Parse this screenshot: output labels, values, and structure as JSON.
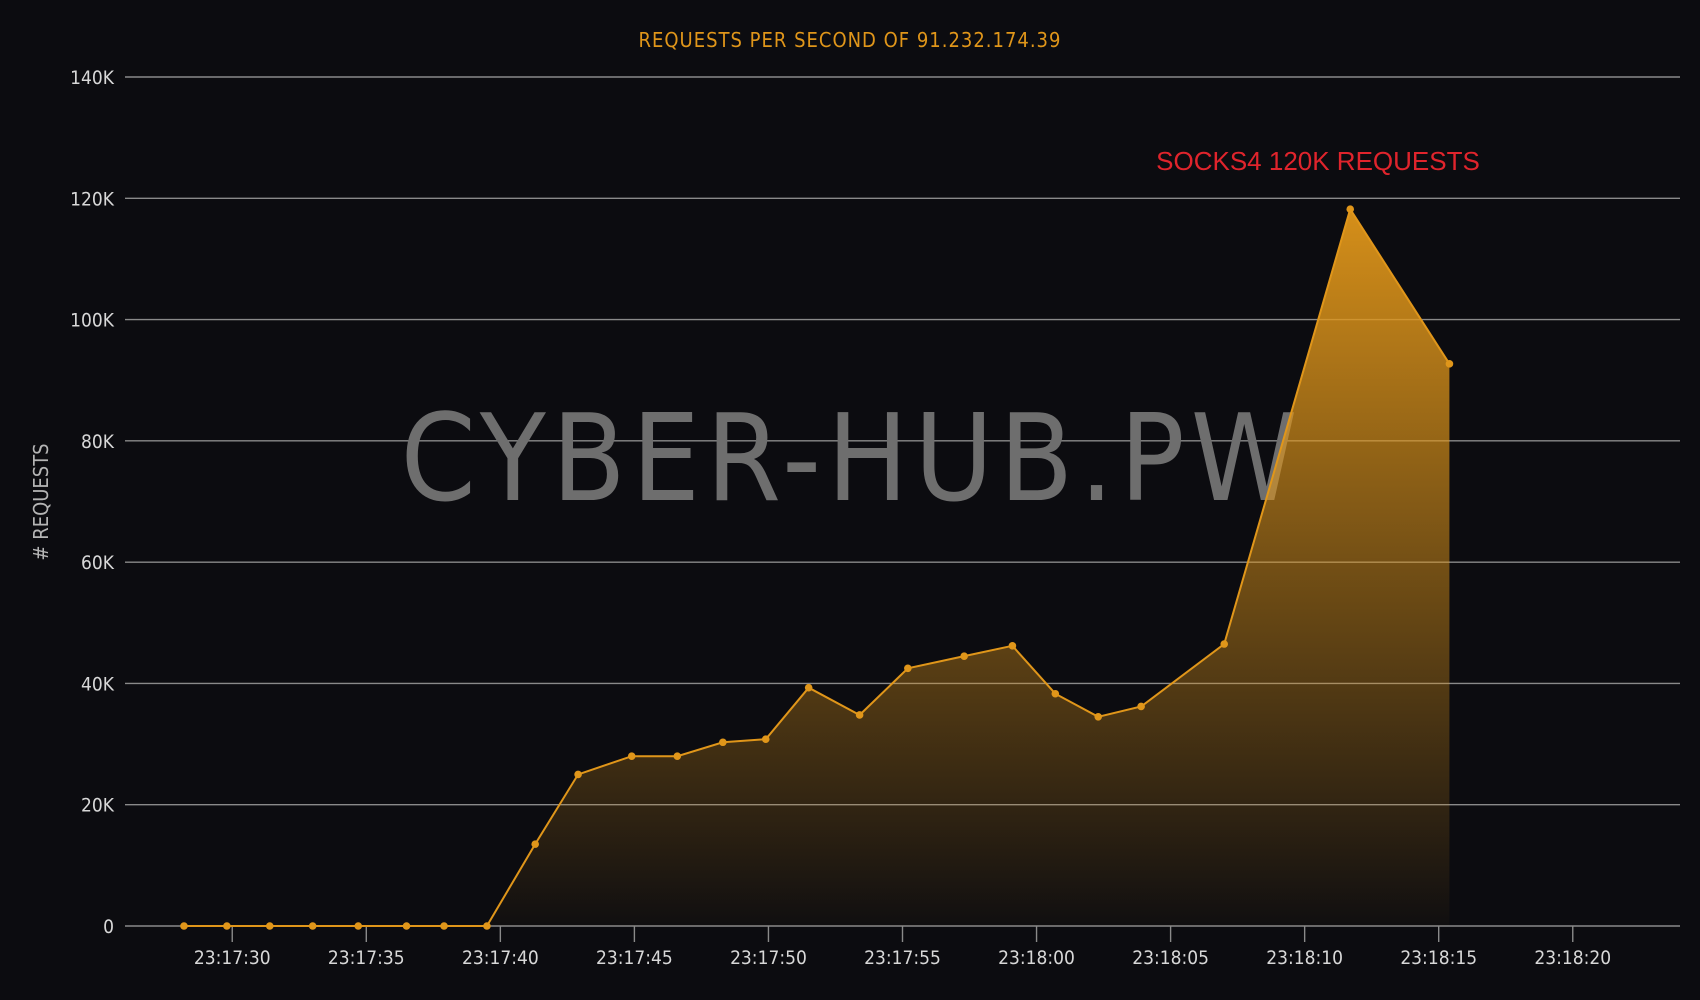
{
  "colors": {
    "background": "#0c0c10",
    "accent": "#e0961a",
    "annotation": "#e0242c",
    "watermark": "#6e6e6e"
  },
  "chart_data": {
    "type": "area",
    "title": "REQUESTS PER SECOND OF 91.232.174.39",
    "ylabel": "# REQUESTS",
    "xlabel": "",
    "ylim": [
      0,
      140000
    ],
    "xlim": [
      "23:17:26",
      "23:18:24"
    ],
    "yticks": [
      0,
      20000,
      40000,
      60000,
      80000,
      100000,
      120000,
      140000
    ],
    "ytick_labels": [
      "0",
      "20K",
      "40K",
      "60K",
      "80K",
      "100K",
      "120K",
      "140K"
    ],
    "xticks": [
      "23:17:30",
      "23:17:35",
      "23:17:40",
      "23:17:45",
      "23:17:50",
      "23:17:55",
      "23:18:00",
      "23:18:05",
      "23:18:10",
      "23:18:15",
      "23:18:20"
    ],
    "grid": true,
    "watermark": "CYBER-HUB.PW",
    "annotation": "SOCKS4 120K REQUESTS",
    "series": [
      {
        "x": [
          "23:17:28.2",
          "23:17:29.8",
          "23:17:31.4",
          "23:17:33.0",
          "23:17:34.7",
          "23:17:36.5",
          "23:17:37.9",
          "23:17:39.5",
          "23:17:41.3",
          "23:17:42.9",
          "23:17:44.9",
          "23:17:46.6",
          "23:17:48.3",
          "23:17:49.9",
          "23:17:51.5",
          "23:17:53.4",
          "23:17:55.2",
          "23:17:57.3",
          "23:17:59.1",
          "23:18:00.7",
          "23:18:02.3",
          "23:18:03.9",
          "23:18:07.0",
          "23:18:11.7",
          "23:18:15.4"
        ],
        "y": [
          0,
          0,
          0,
          0,
          0,
          0,
          0,
          0,
          13500,
          25000,
          28000,
          28000,
          30300,
          30800,
          39300,
          34800,
          42500,
          44500,
          46200,
          38300,
          34500,
          36200,
          46500,
          118200,
          92700
        ]
      }
    ]
  }
}
